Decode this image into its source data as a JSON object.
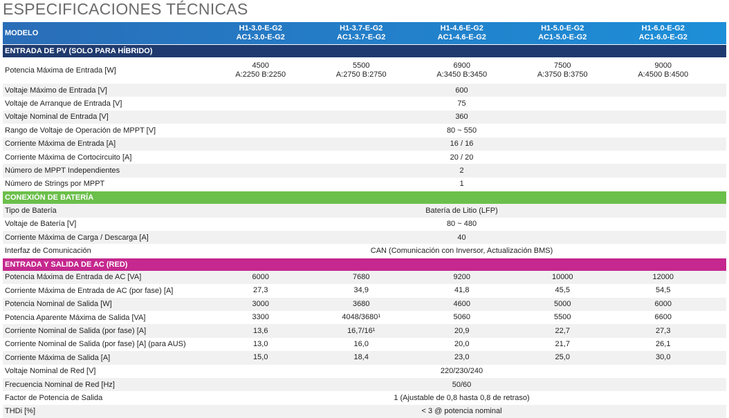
{
  "title": "ESPECIFICACIONES TÉCNICAS",
  "header": {
    "label": "MODELO",
    "models": [
      [
        "H1-3.0-E-G2",
        "AC1-3.0-E-G2"
      ],
      [
        "H1-3.7-E-G2",
        "AC1-3.7-E-G2"
      ],
      [
        "H1-4.6-E-G2",
        "AC1-4.6-E-G2"
      ],
      [
        "H1-5.0-E-G2",
        "AC1-5.0-E-G2"
      ],
      [
        "H1-6.0-E-G2",
        "AC1-6.0-E-G2"
      ]
    ]
  },
  "sections": [
    {
      "title": "ENTRADA DE PV (SOLO PARA HÍBRIDO)",
      "rows": [
        {
          "label": "Potencia Máxima de Entrada [W]",
          "values": [
            [
              "4500",
              "A:2250 B:2250"
            ],
            [
              "5500",
              "A:2750 B:2750"
            ],
            [
              "6900",
              "A:3450 B:3450"
            ],
            [
              "7500",
              "A:3750 B:3750"
            ],
            [
              "9000",
              "A:4500 B:4500"
            ]
          ]
        },
        {
          "label": "Voltaje Máximo de Entrada [V]",
          "value": "600"
        },
        {
          "label": "Voltaje de Arranque de Entrada [V]",
          "value": "75"
        },
        {
          "label": "Voltaje Nominal de Entrada [V]",
          "value": "360"
        },
        {
          "label": "Rango de Voltaje de Operación de MPPT [V]",
          "value": "80 ~ 550"
        },
        {
          "label": "Corriente Máxima de Entrada [A]",
          "value": "16 / 16"
        },
        {
          "label": "Corriente Máxima de Cortocircuito [A]",
          "value": "20 / 20"
        },
        {
          "label": "Número de MPPT Independientes",
          "value": "2"
        },
        {
          "label": "Número de Strings por MPPT",
          "value": "1"
        }
      ]
    },
    {
      "title": "CONEXIÓN DE BATERÍA",
      "rows": [
        {
          "label": "Tipo de Batería",
          "value": "Batería de Litio (LFP)"
        },
        {
          "label": "Voltaje de Batería [V]",
          "value": "80 ~ 480"
        },
        {
          "label": "Corriente Máxima de Carga / Descarga [A]",
          "value": "40"
        },
        {
          "label": "Interfaz de Comunicación",
          "value": "CAN (Comunicación con Inversor, Actualización BMS)"
        }
      ]
    },
    {
      "title": "ENTRADA Y SALIDA DE AC (RED)",
      "rows": [
        {
          "label": "Potencia Máxima de Entrada de AC [VA]",
          "values": [
            "6000",
            "7680",
            "9200",
            "10000",
            "12000"
          ]
        },
        {
          "label": "Corriente Máxima de Entrada de AC (por fase) [A]",
          "values": [
            "27,3",
            "34,9",
            "41,8",
            "45,5",
            "54,5"
          ]
        },
        {
          "label": "Potencia Nominal de Salida [W]",
          "values": [
            "3000",
            "3680",
            "4600",
            "5000",
            "6000"
          ]
        },
        {
          "label": "Potencia Aparente Máxima de Salida [VA]",
          "values": [
            "3300",
            "4048/3680¹",
            "5060",
            "5500",
            "6600"
          ]
        },
        {
          "label": "Corriente Nominal de Salida (por fase) [A]",
          "values": [
            "13,6",
            "16,7/16¹",
            "20,9",
            "22,7",
            "27,3"
          ]
        },
        {
          "label": "Corriente Nominal de Salida (por fase) [A] (para AUS)",
          "values": [
            "13,0",
            "16,0",
            "20,0",
            "21,7",
            "26,1"
          ]
        },
        {
          "label": "Corriente Máxima de Salida [A]",
          "values": [
            "15,0",
            "18,4",
            "23,0",
            "25,0",
            "30,0"
          ]
        },
        {
          "label": "Voltaje Nominal de Red [V]",
          "value": "220/230/240"
        },
        {
          "label": "Frecuencia Nominal de Red [Hz]",
          "value": "50/60"
        },
        {
          "label": "Factor de Potencia de Salida",
          "value": "1 (Ajustable de 0,8 hasta 0,8 de retraso)"
        },
        {
          "label": "THDi [%]",
          "value": "< 3 @ potencia nominal"
        }
      ]
    }
  ]
}
